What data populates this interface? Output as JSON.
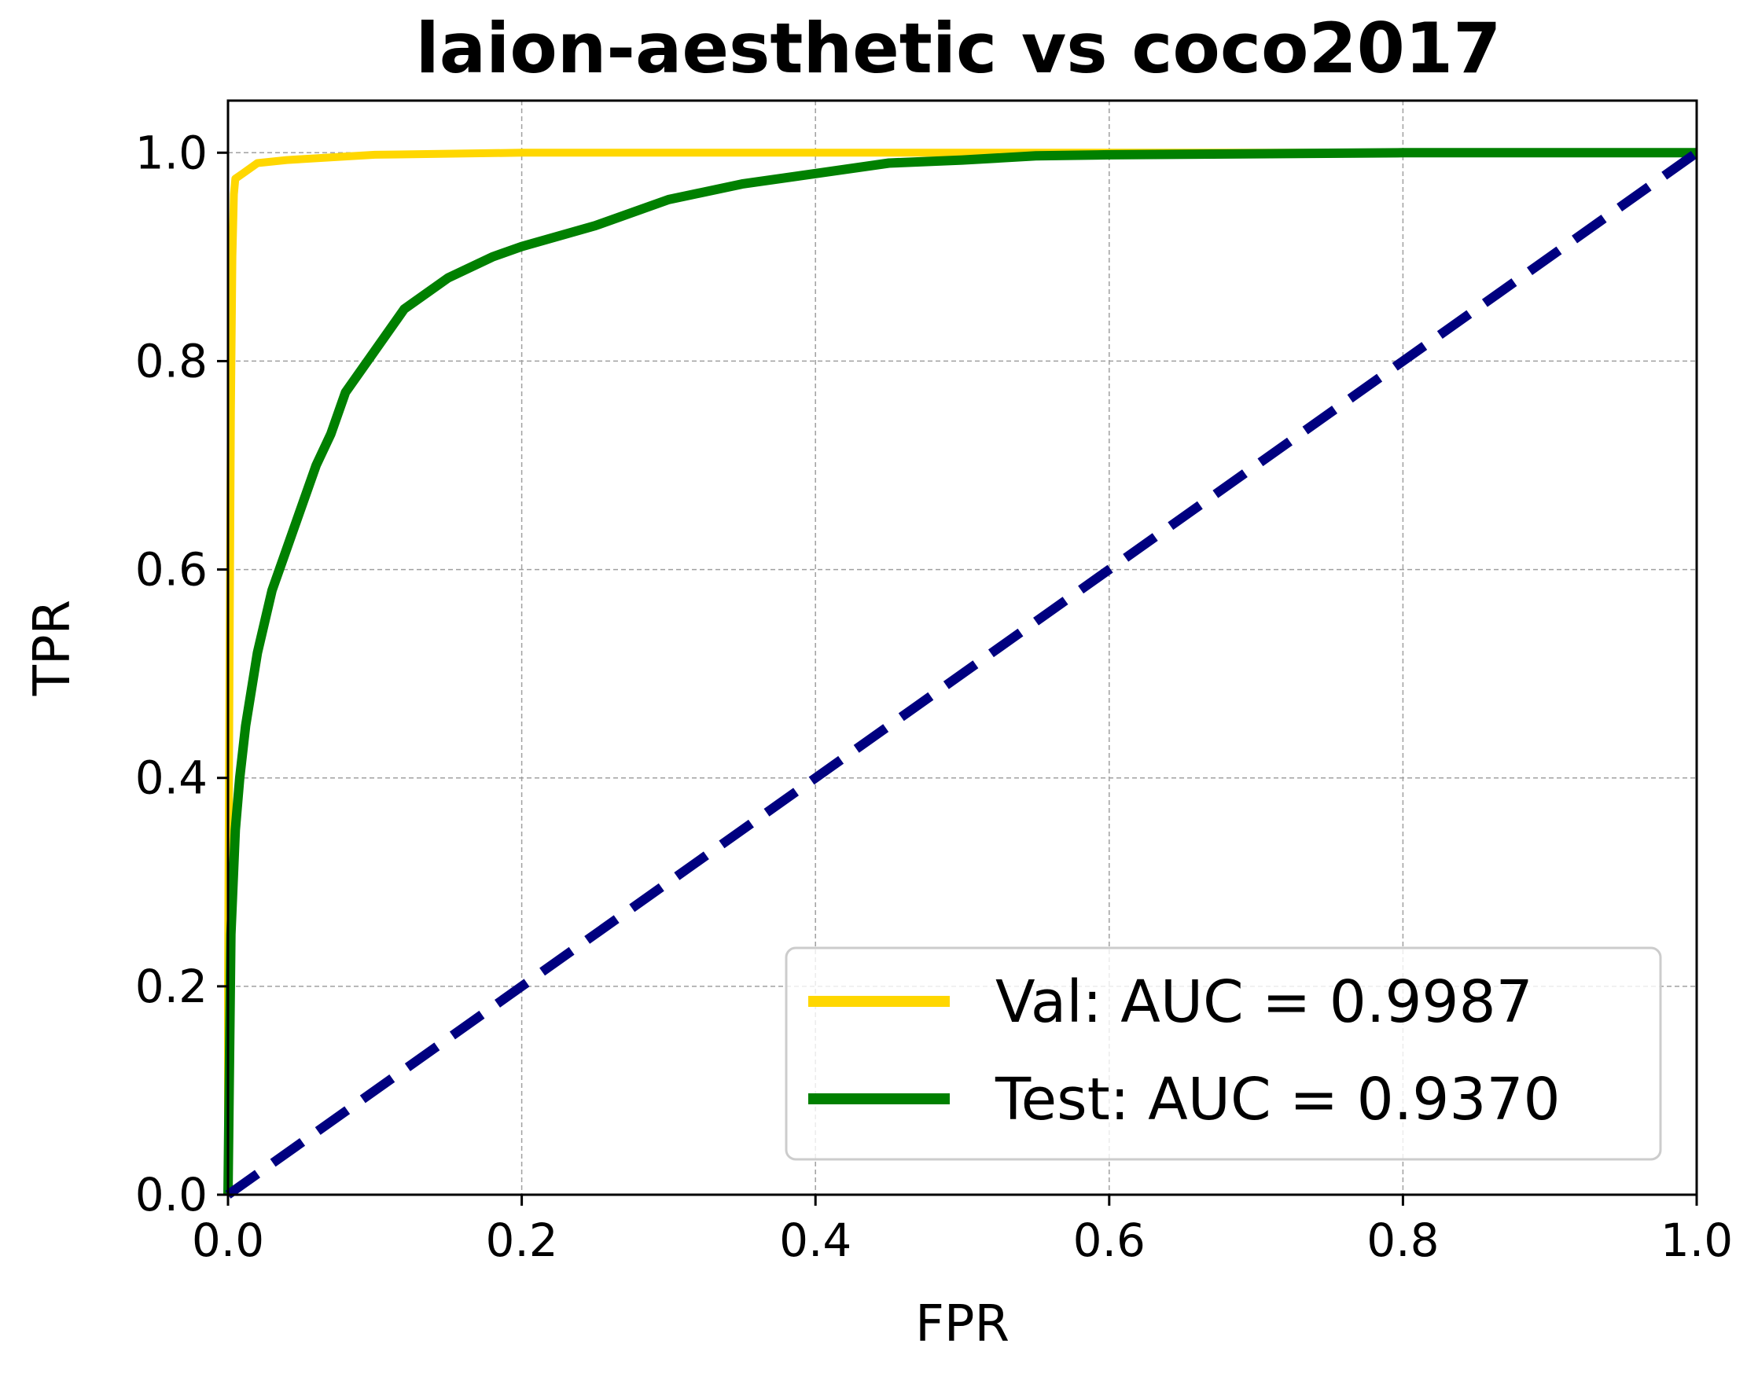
{
  "chart_data": {
    "type": "line",
    "title": "laion-aesthetic vs coco2017",
    "xlabel": "FPR",
    "ylabel": "TPR",
    "xlim": [
      0.0,
      1.0
    ],
    "ylim": [
      0.0,
      1.05
    ],
    "xticks": [
      "0.0",
      "0.2",
      "0.4",
      "0.6",
      "0.8",
      "1.0"
    ],
    "yticks": [
      "0.0",
      "0.2",
      "0.4",
      "0.6",
      "0.8",
      "1.0"
    ],
    "grid": true,
    "legend_position": "lower-right",
    "series": [
      {
        "name": "Val: AUC = 0.9987",
        "color": "#FFD700",
        "style": "solid",
        "x": [
          0.0,
          0.0,
          0.001,
          0.002,
          0.003,
          0.004,
          0.005,
          0.01,
          0.02,
          0.04,
          0.1,
          0.2,
          0.5,
          1.0
        ],
        "y": [
          0.0,
          0.2,
          0.5,
          0.75,
          0.9,
          0.96,
          0.975,
          0.98,
          0.99,
          0.993,
          0.998,
          1.0,
          1.0,
          1.0
        ]
      },
      {
        "name": "Test: AUC = 0.9370",
        "color": "#008000",
        "style": "solid",
        "x": [
          0.0,
          0.002,
          0.005,
          0.008,
          0.012,
          0.02,
          0.03,
          0.04,
          0.05,
          0.06,
          0.07,
          0.08,
          0.09,
          0.1,
          0.12,
          0.15,
          0.18,
          0.2,
          0.25,
          0.3,
          0.35,
          0.4,
          0.45,
          0.5,
          0.55,
          0.6,
          0.7,
          0.8,
          0.9,
          1.0
        ],
        "y": [
          0.0,
          0.25,
          0.35,
          0.4,
          0.45,
          0.52,
          0.58,
          0.62,
          0.66,
          0.7,
          0.73,
          0.77,
          0.79,
          0.81,
          0.85,
          0.88,
          0.9,
          0.91,
          0.93,
          0.955,
          0.97,
          0.98,
          0.99,
          0.993,
          0.997,
          0.998,
          0.999,
          1.0,
          1.0,
          1.0
        ]
      },
      {
        "name": "",
        "color": "#000080",
        "style": "dashed",
        "x": [
          0.0,
          1.0
        ],
        "y": [
          0.0,
          1.0
        ]
      }
    ]
  }
}
